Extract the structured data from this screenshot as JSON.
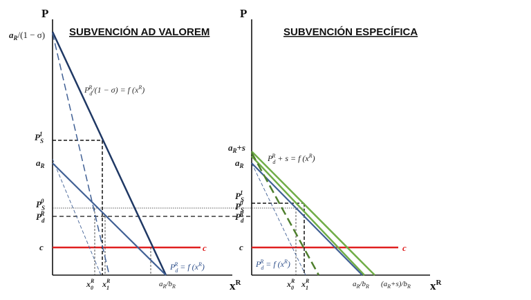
{
  "colors": {
    "axis": "#111111",
    "navy": "#1f3864",
    "blue": "#3f5f94",
    "red": "#e02020",
    "green": "#70ad47",
    "greenDark": "#4e7f2d",
    "label": "#222222",
    "blueLabel": "#2e4f8a"
  },
  "left": {
    "title": "SUBVENCIÓN AD VALOREM",
    "axis_y": "P",
    "axis_x": "x",
    "axis_x_sup": "R",
    "y_labels": {
      "top": "a",
      "top_sub": "R",
      "top_tail": "/(1 − σ)",
      "ps1": "P",
      "ps1_sub": "S",
      "ps1_sup": "1",
      "aR": "a",
      "aR_sub": "R",
      "ps0": "P",
      "ps0_sub": "S",
      "ps0_sup": "0",
      "pd": "P",
      "pd_sub": "d",
      "pd_sup": "R",
      "c": "c"
    },
    "curve_label_upper": {
      "P": "P",
      "sub": "d",
      "sup": "R",
      "text": "/(1 − σ) = f (x",
      "sup2": "R",
      "close": ")"
    },
    "curve_label_lower": {
      "P": "P",
      "sub": "d",
      "sup": "R",
      "text": " = f (x",
      "sup2": "R",
      "close": ")"
    },
    "c_line_label": "c",
    "x_labels": {
      "x0": "x",
      "x0_sub": "0",
      "x0_sup": "R",
      "x1": "x",
      "x1_sub": "1",
      "x1_sup": "R",
      "ab": "a",
      "ab_sub1": "R",
      "ab_mid": "/b",
      "ab_sub2": "R"
    }
  },
  "right": {
    "title": "SUBVENCIÓN ESPECÍFICA",
    "axis_y": "P",
    "axis_x": "x",
    "axis_x_sup": "R",
    "y_labels": {
      "top": "a",
      "top_sub": "R",
      "top_tail": "+s",
      "aR": "a",
      "aR_sub": "R",
      "ps1": "P",
      "ps1_sub": "S",
      "ps1_sup": "1",
      "ps0": "P",
      "ps0_sub": "S",
      "ps0_sup": "0",
      "pd": "P",
      "pd_sub": "d",
      "pd_sup": "R",
      "c": "c"
    },
    "curve_label_upper": {
      "P": "P",
      "sub": "d",
      "sup": "R",
      "text": " + s = f (x",
      "sup2": "R",
      "close": ")"
    },
    "curve_label_lower": {
      "P": "P",
      "sub": "d",
      "sup": "R",
      "text": " = f (x",
      "sup2": "R",
      "close": ")"
    },
    "c_line_label": "c",
    "x_labels": {
      "x0": "x",
      "x0_sub": "0",
      "x0_sup": "R",
      "x1": "x",
      "x1_sub": "1",
      "x1_sup": "R",
      "ab": "a",
      "ab_sub1": "R",
      "ab_mid": "/b",
      "ab_sub2": "R",
      "abs_open": "(a",
      "abs_sub1": "R",
      "abs_mid": "+s)/b",
      "abs_sub2": "R"
    }
  }
}
